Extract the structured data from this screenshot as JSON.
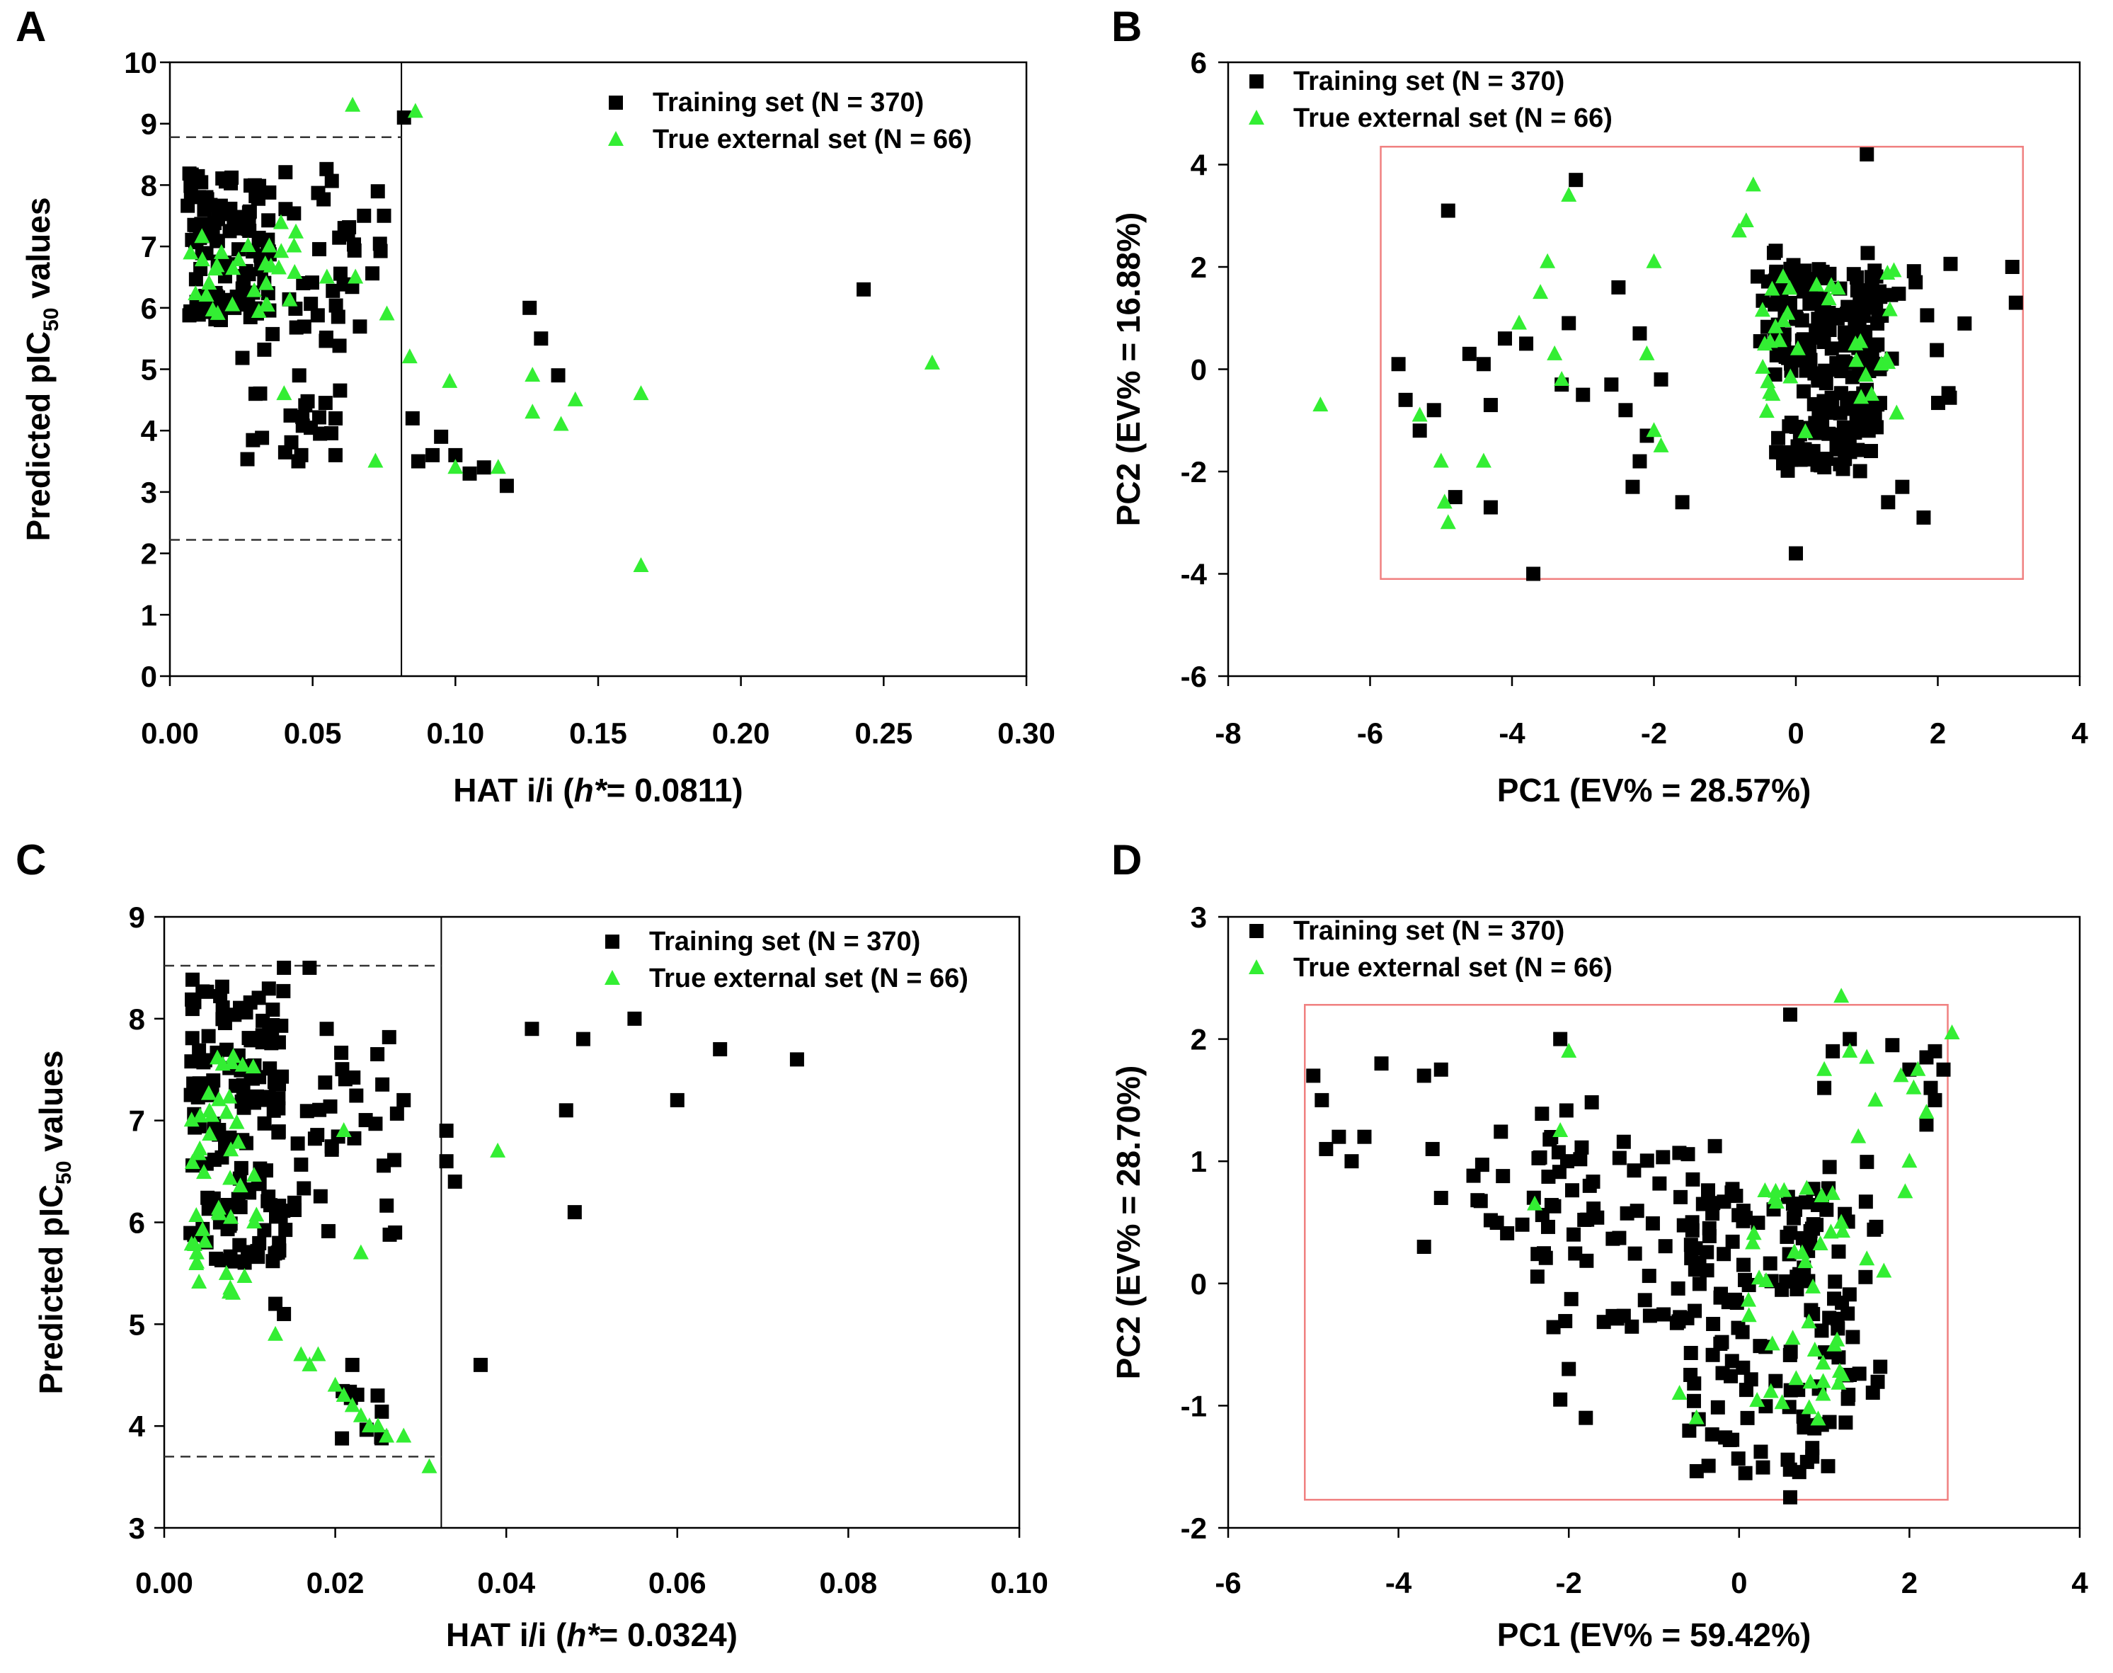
{
  "colors": {
    "training": "#000000",
    "external": "#33ee33",
    "box": "#f08080",
    "axis": "#000000"
  },
  "chart_data": [
    {
      "id": "A",
      "type": "scatter",
      "panel_letter": "A",
      "xlabel_pre": "HAT i/i (",
      "xlabel_em": "h*",
      "xlabel_post": "= 0.0811)",
      "ylabel_pre": "Predicted pIC",
      "ylabel_sub": "50",
      "ylabel_post": " values",
      "xlim": [
        0,
        0.3
      ],
      "ylim": [
        0,
        10
      ],
      "xticks": [
        "0.00",
        "0.05",
        "0.10",
        "0.15",
        "0.20",
        "0.25",
        "0.30"
      ],
      "yticks": [
        "0",
        "1",
        "2",
        "3",
        "4",
        "5",
        "6",
        "7",
        "8",
        "9",
        "10"
      ],
      "legend": [
        "Training set (N = 370)",
        "True external set (N = 66)"
      ],
      "warning_leverage": 0.0811,
      "hlines": [
        8.78,
        2.22
      ],
      "training_clusters": [
        {
          "n": 110,
          "x": [
            0.006,
            0.035
          ],
          "y": [
            5.8,
            8.2
          ]
        },
        {
          "n": 35,
          "x": [
            0.025,
            0.06
          ],
          "y": [
            3.5,
            6.5
          ]
        },
        {
          "n": 25,
          "x": [
            0.04,
            0.075
          ],
          "y": [
            5.5,
            8.4
          ]
        }
      ],
      "training_points": [
        [
          0.082,
          9.1
        ],
        [
          0.126,
          6.0
        ],
        [
          0.13,
          5.5
        ],
        [
          0.136,
          4.9
        ],
        [
          0.085,
          4.2
        ],
        [
          0.087,
          3.5
        ],
        [
          0.092,
          3.6
        ],
        [
          0.095,
          3.9
        ],
        [
          0.1,
          3.6
        ],
        [
          0.105,
          3.3
        ],
        [
          0.11,
          3.4
        ],
        [
          0.118,
          3.1
        ],
        [
          0.243,
          6.3
        ],
        [
          0.03,
          4.6
        ],
        [
          0.045,
          3.5
        ],
        [
          0.058,
          3.6
        ],
        [
          0.068,
          7.5
        ],
        [
          0.075,
          7.5
        ]
      ],
      "external_clusters": [
        {
          "n": 30,
          "x": [
            0.006,
            0.045
          ],
          "y": [
            5.7,
            7.4
          ]
        }
      ],
      "external_points": [
        [
          0.064,
          9.3
        ],
        [
          0.086,
          9.2
        ],
        [
          0.084,
          5.2
        ],
        [
          0.098,
          4.8
        ],
        [
          0.1,
          3.4
        ],
        [
          0.115,
          3.4
        ],
        [
          0.127,
          4.9
        ],
        [
          0.127,
          4.3
        ],
        [
          0.137,
          4.1
        ],
        [
          0.142,
          4.5
        ],
        [
          0.165,
          4.6
        ],
        [
          0.165,
          1.8
        ],
        [
          0.267,
          5.1
        ],
        [
          0.065,
          6.5
        ],
        [
          0.072,
          3.5
        ],
        [
          0.076,
          5.9
        ],
        [
          0.055,
          6.5
        ],
        [
          0.04,
          4.6
        ]
      ]
    },
    {
      "id": "B",
      "type": "scatter",
      "panel_letter": "B",
      "xlabel_pre": "PC1 (EV% = 28.57%)",
      "xlabel_em": "",
      "xlabel_post": "",
      "ylabel_pre": "PC2 (EV% = 16.88%)",
      "ylabel_sub": "",
      "ylabel_post": "",
      "xlim": [
        -8,
        4
      ],
      "ylim": [
        -6,
        6
      ],
      "xticks": [
        "-8",
        "-6",
        "-4",
        "-2",
        "0",
        "2",
        "4"
      ],
      "yticks": [
        "-6",
        "-4",
        "-2",
        "0",
        "2",
        "4",
        "6"
      ],
      "legend": [
        "Training set (N = 370)",
        "True external set (N = 66)"
      ],
      "box": [
        -5.85,
        -4.1,
        3.2,
        4.35
      ],
      "training_clusters": [
        {
          "n": 190,
          "x": [
            -0.3,
            1.2
          ],
          "y": [
            -2.0,
            2.0
          ]
        },
        {
          "n": 25,
          "x": [
            0.8,
            2.6
          ],
          "y": [
            -1.0,
            2.3
          ]
        },
        {
          "n": 15,
          "x": [
            -0.6,
            0.4
          ],
          "y": [
            0.5,
            2.5
          ]
        }
      ],
      "training_points": [
        [
          -5.6,
          0.1
        ],
        [
          -5.5,
          -0.6
        ],
        [
          -5.3,
          -1.2
        ],
        [
          -5.1,
          -0.8
        ],
        [
          -4.9,
          3.1
        ],
        [
          -4.8,
          -2.5
        ],
        [
          -4.6,
          0.3
        ],
        [
          -4.4,
          0.1
        ],
        [
          -4.3,
          -0.7
        ],
        [
          -4.3,
          -2.7
        ],
        [
          -4.1,
          0.6
        ],
        [
          -3.8,
          0.5
        ],
        [
          -3.7,
          -4.0
        ],
        [
          -3.3,
          -0.3
        ],
        [
          -3.2,
          0.9
        ],
        [
          -3.1,
          3.7
        ],
        [
          -3.0,
          -0.5
        ],
        [
          -2.6,
          -0.3
        ],
        [
          -2.5,
          1.6
        ],
        [
          -2.4,
          -0.8
        ],
        [
          -2.3,
          -2.3
        ],
        [
          -2.2,
          0.7
        ],
        [
          -2.2,
          -1.8
        ],
        [
          -2.1,
          -1.3
        ],
        [
          -1.9,
          -0.2
        ],
        [
          -1.6,
          -2.6
        ],
        [
          1.0,
          4.2
        ],
        [
          3.05,
          2.0
        ],
        [
          3.1,
          1.3
        ],
        [
          0.0,
          -3.6
        ],
        [
          1.3,
          -2.6
        ],
        [
          1.8,
          -2.9
        ],
        [
          1.5,
          -2.3
        ]
      ],
      "external_clusters": [
        {
          "n": 35,
          "x": [
            -0.6,
            1.5
          ],
          "y": [
            -1.3,
            2.2
          ]
        }
      ],
      "external_points": [
        [
          -6.7,
          -0.7
        ],
        [
          -5.3,
          -0.9
        ],
        [
          -5.0,
          -1.8
        ],
        [
          -4.95,
          -2.6
        ],
        [
          -4.9,
          -3.0
        ],
        [
          -4.4,
          -1.8
        ],
        [
          -3.9,
          0.9
        ],
        [
          -3.6,
          1.5
        ],
        [
          -3.5,
          2.1
        ],
        [
          -3.4,
          0.3
        ],
        [
          -3.3,
          -0.2
        ],
        [
          -3.2,
          3.4
        ],
        [
          -2.0,
          2.1
        ],
        [
          -2.1,
          0.3
        ],
        [
          -2.0,
          -1.2
        ],
        [
          -1.9,
          -1.5
        ],
        [
          -0.6,
          3.6
        ],
        [
          -0.7,
          2.9
        ],
        [
          -0.8,
          2.7
        ]
      ]
    },
    {
      "id": "C",
      "type": "scatter",
      "panel_letter": "C",
      "xlabel_pre": "HAT i/i (",
      "xlabel_em": "h*",
      "xlabel_post": "= 0.0324)",
      "ylabel_pre": "Predicted pIC",
      "ylabel_sub": "50",
      "ylabel_post": " values",
      "xlim": [
        0,
        0.1
      ],
      "ylim": [
        3,
        9
      ],
      "xticks": [
        "0.00",
        "0.02",
        "0.04",
        "0.06",
        "0.08",
        "0.10"
      ],
      "yticks": [
        "3",
        "4",
        "5",
        "6",
        "7",
        "8",
        "9"
      ],
      "legend": [
        "Training set (N = 370)",
        "True external set (N = 66)"
      ],
      "warning_leverage": 0.0324,
      "hlines": [
        8.52,
        3.7
      ],
      "training_clusters": [
        {
          "n": 140,
          "x": [
            0.003,
            0.014
          ],
          "y": [
            5.6,
            8.4
          ]
        },
        {
          "n": 35,
          "x": [
            0.012,
            0.028
          ],
          "y": [
            5.8,
            7.9
          ]
        },
        {
          "n": 10,
          "x": [
            0.02,
            0.027
          ],
          "y": [
            3.8,
            4.4
          ]
        }
      ],
      "training_points": [
        [
          0.017,
          8.5
        ],
        [
          0.014,
          8.5
        ],
        [
          0.019,
          7.9
        ],
        [
          0.033,
          6.9
        ],
        [
          0.033,
          6.6
        ],
        [
          0.034,
          6.4
        ],
        [
          0.037,
          4.6
        ],
        [
          0.043,
          7.9
        ],
        [
          0.047,
          7.1
        ],
        [
          0.048,
          6.1
        ],
        [
          0.049,
          7.8
        ],
        [
          0.055,
          8.0
        ],
        [
          0.06,
          7.2
        ],
        [
          0.065,
          7.7
        ],
        [
          0.074,
          7.6
        ],
        [
          0.027,
          5.9
        ],
        [
          0.028,
          7.2
        ],
        [
          0.013,
          5.2
        ],
        [
          0.014,
          5.1
        ],
        [
          0.022,
          4.6
        ]
      ],
      "external_clusters": [
        {
          "n": 45,
          "x": [
            0.003,
            0.011
          ],
          "y": [
            5.3,
            7.8
          ]
        }
      ],
      "external_points": [
        [
          0.013,
          4.9
        ],
        [
          0.016,
          4.7
        ],
        [
          0.017,
          4.6
        ],
        [
          0.018,
          4.7
        ],
        [
          0.02,
          4.4
        ],
        [
          0.021,
          4.3
        ],
        [
          0.022,
          4.2
        ],
        [
          0.023,
          4.1
        ],
        [
          0.024,
          4.0
        ],
        [
          0.025,
          4.0
        ],
        [
          0.026,
          3.9
        ],
        [
          0.028,
          3.9
        ],
        [
          0.031,
          3.6
        ],
        [
          0.039,
          6.7
        ],
        [
          0.023,
          5.7
        ],
        [
          0.021,
          6.9
        ]
      ]
    },
    {
      "id": "D",
      "type": "scatter",
      "panel_letter": "D",
      "xlabel_pre": "PC1 (EV% = 59.42%)",
      "xlabel_em": "",
      "xlabel_post": "",
      "ylabel_pre": "PC2 (EV% = 28.70%)",
      "ylabel_sub": "",
      "ylabel_post": "",
      "xlim": [
        -6,
        4
      ],
      "ylim": [
        -2,
        3
      ],
      "xticks": [
        "-6",
        "-4",
        "-2",
        "0",
        "2",
        "4"
      ],
      "yticks": [
        "-2",
        "-1",
        "0",
        "1",
        "2",
        "3"
      ],
      "legend": [
        "Training set (N = 370)",
        "True external set (N = 66)"
      ],
      "box": [
        -5.1,
        -1.77,
        2.45,
        2.28
      ],
      "training_clusters": [
        {
          "n": 130,
          "x": [
            -0.6,
            1.3
          ],
          "y": [
            -1.6,
            0.8
          ]
        },
        {
          "n": 60,
          "x": [
            -2.4,
            -0.2
          ],
          "y": [
            -0.4,
            1.2
          ]
        },
        {
          "n": 25,
          "x": [
            -3.2,
            -1.7
          ],
          "y": [
            0.4,
            1.5
          ]
        },
        {
          "n": 20,
          "x": [
            0.8,
            1.7
          ],
          "y": [
            -0.9,
            1.0
          ]
        }
      ],
      "training_points": [
        [
          -5.0,
          1.7
        ],
        [
          -4.9,
          1.5
        ],
        [
          -4.85,
          1.1
        ],
        [
          -4.7,
          1.2
        ],
        [
          -4.55,
          1.0
        ],
        [
          -4.4,
          1.2
        ],
        [
          -4.2,
          1.8
        ],
        [
          -3.7,
          1.7
        ],
        [
          -3.6,
          1.1
        ],
        [
          -3.5,
          1.75
        ],
        [
          -3.5,
          0.7
        ],
        [
          -3.7,
          0.3
        ],
        [
          -2.1,
          2.0
        ],
        [
          -2.0,
          -0.7
        ],
        [
          -2.1,
          -0.95
        ],
        [
          -1.8,
          -1.1
        ],
        [
          0.6,
          2.2
        ],
        [
          1.0,
          1.6
        ],
        [
          1.1,
          1.9
        ],
        [
          1.3,
          2.0
        ],
        [
          1.8,
          1.95
        ],
        [
          2.0,
          1.75
        ],
        [
          2.2,
          1.85
        ],
        [
          2.3,
          1.9
        ],
        [
          2.25,
          1.6
        ],
        [
          2.4,
          1.75
        ],
        [
          2.3,
          1.5
        ],
        [
          2.2,
          1.3
        ],
        [
          0.6,
          -1.75
        ]
      ],
      "external_clusters": [
        {
          "n": 40,
          "x": [
            0.1,
            1.3
          ],
          "y": [
            -1.2,
            0.8
          ]
        }
      ],
      "external_points": [
        [
          -2.0,
          1.9
        ],
        [
          -2.1,
          1.25
        ],
        [
          -2.4,
          0.65
        ],
        [
          1.2,
          2.35
        ],
        [
          1.3,
          1.9
        ],
        [
          1.0,
          1.75
        ],
        [
          1.5,
          1.85
        ],
        [
          1.6,
          1.5
        ],
        [
          1.4,
          1.2
        ],
        [
          1.9,
          1.7
        ],
        [
          2.05,
          1.6
        ],
        [
          2.1,
          1.75
        ],
        [
          2.2,
          1.4
        ],
        [
          2.5,
          2.05
        ],
        [
          1.95,
          0.75
        ],
        [
          2.0,
          1.0
        ],
        [
          1.5,
          0.2
        ],
        [
          1.7,
          0.1
        ],
        [
          1.2,
          0.5
        ],
        [
          -0.5,
          -1.1
        ],
        [
          -0.7,
          -0.9
        ]
      ]
    }
  ]
}
